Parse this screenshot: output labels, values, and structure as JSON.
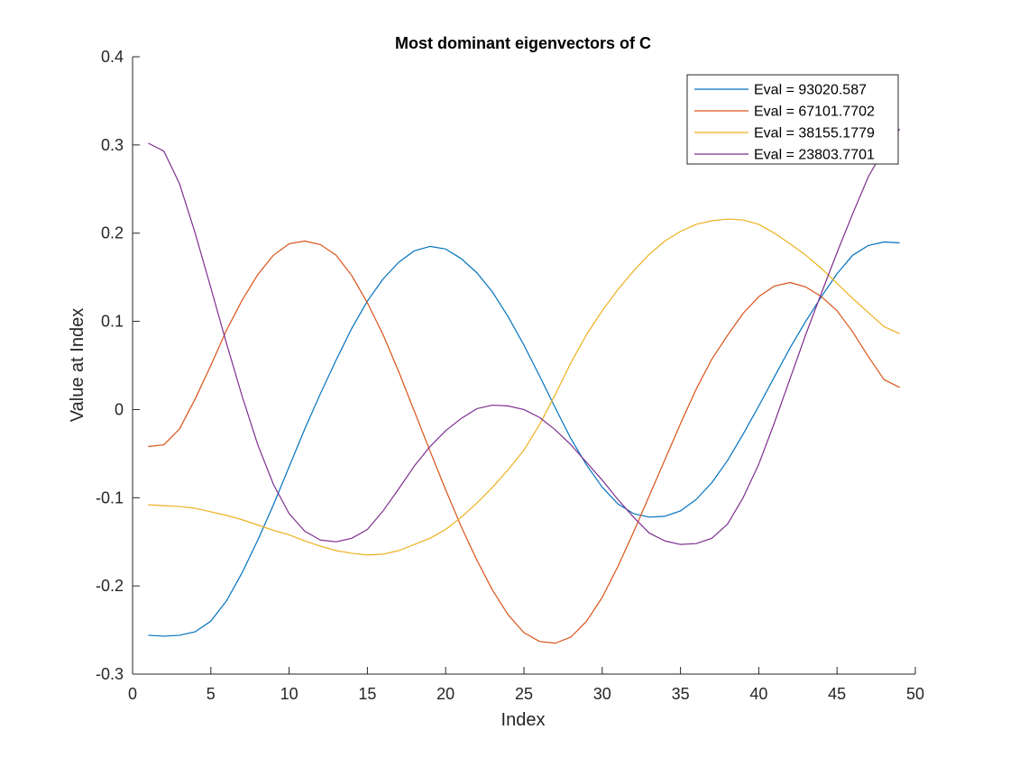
{
  "chart_data": {
    "type": "line",
    "title": "Most dominant eigenvectors of C",
    "xlabel": "Index",
    "ylabel": "Value at Index",
    "xlim": [
      0,
      50
    ],
    "ylim": [
      -0.3,
      0.4
    ],
    "xticks": [
      0,
      5,
      10,
      15,
      20,
      25,
      30,
      35,
      40,
      45,
      50
    ],
    "xtick_labels": [
      "0",
      "5",
      "10",
      "15",
      "20",
      "25",
      "30",
      "35",
      "40",
      "45",
      "50"
    ],
    "yticks": [
      -0.3,
      -0.2,
      -0.1,
      0,
      0.1,
      0.2,
      0.3,
      0.4
    ],
    "ytick_labels": [
      "-0.3",
      "-0.2",
      "-0.1",
      "0",
      "0.1",
      "0.2",
      "0.3",
      "0.4"
    ],
    "grid": false,
    "legend_position": "top-right",
    "x": [
      1,
      2,
      3,
      4,
      5,
      6,
      7,
      8,
      9,
      10,
      11,
      12,
      13,
      14,
      15,
      16,
      17,
      18,
      19,
      20,
      21,
      22,
      23,
      24,
      25,
      26,
      27,
      28,
      29,
      30,
      31,
      32,
      33,
      34,
      35,
      36,
      37,
      38,
      39,
      40,
      41,
      42,
      43,
      44,
      45,
      46,
      47,
      48,
      49
    ],
    "series": [
      {
        "name": "Eval = 93020.587",
        "color": "#0072BD",
        "values": [
          -0.256,
          -0.257,
          -0.256,
          -0.252,
          -0.24,
          -0.217,
          -0.185,
          -0.148,
          -0.108,
          -0.065,
          -0.022,
          0.018,
          0.056,
          0.092,
          0.123,
          0.148,
          0.167,
          0.18,
          0.185,
          0.182,
          0.171,
          0.155,
          0.133,
          0.105,
          0.073,
          0.038,
          0.002,
          -0.033,
          -0.063,
          -0.088,
          -0.107,
          -0.118,
          -0.122,
          -0.121,
          -0.115,
          -0.102,
          -0.083,
          -0.058,
          -0.028,
          0.004,
          0.037,
          0.07,
          0.1,
          0.128,
          0.154,
          0.175,
          0.186,
          0.19,
          0.189
        ]
      },
      {
        "name": "Eval = 67101.7702",
        "color": "#D95319",
        "values": [
          -0.042,
          -0.04,
          -0.022,
          0.012,
          0.05,
          0.09,
          0.124,
          0.153,
          0.175,
          0.188,
          0.191,
          0.187,
          0.175,
          0.152,
          0.121,
          0.085,
          0.043,
          -0.002,
          -0.047,
          -0.091,
          -0.133,
          -0.171,
          -0.205,
          -0.233,
          -0.253,
          -0.263,
          -0.265,
          -0.258,
          -0.24,
          -0.213,
          -0.178,
          -0.139,
          -0.098,
          -0.057,
          -0.016,
          0.023,
          0.057,
          0.084,
          0.109,
          0.128,
          0.14,
          0.144,
          0.139,
          0.128,
          0.112,
          0.088,
          0.06,
          0.034,
          0.025
        ]
      },
      {
        "name": "Eval = 38155.1779",
        "color": "#EDB120",
        "values": [
          -0.108,
          -0.109,
          -0.11,
          -0.112,
          -0.116,
          -0.12,
          -0.125,
          -0.131,
          -0.137,
          -0.142,
          -0.149,
          -0.155,
          -0.16,
          -0.163,
          -0.165,
          -0.164,
          -0.16,
          -0.153,
          -0.146,
          -0.136,
          -0.122,
          -0.106,
          -0.088,
          -0.068,
          -0.046,
          -0.017,
          0.017,
          0.053,
          0.085,
          0.112,
          0.136,
          0.157,
          0.176,
          0.191,
          0.202,
          0.21,
          0.214,
          0.216,
          0.215,
          0.21,
          0.2,
          0.188,
          0.175,
          0.16,
          0.143,
          0.126,
          0.11,
          0.094,
          0.086
        ]
      },
      {
        "name": "Eval = 23803.7701",
        "color": "#7E2F8E",
        "values": [
          0.302,
          0.293,
          0.256,
          0.2,
          0.138,
          0.075,
          0.015,
          -0.04,
          -0.085,
          -0.118,
          -0.138,
          -0.148,
          -0.15,
          -0.146,
          -0.136,
          -0.115,
          -0.09,
          -0.064,
          -0.042,
          -0.024,
          -0.01,
          0.001,
          0.005,
          0.004,
          0.0,
          -0.009,
          -0.023,
          -0.04,
          -0.06,
          -0.08,
          -0.102,
          -0.122,
          -0.14,
          -0.149,
          -0.153,
          -0.152,
          -0.146,
          -0.13,
          -0.1,
          -0.062,
          -0.015,
          0.035,
          0.085,
          0.132,
          0.178,
          0.222,
          0.264,
          0.295,
          0.318
        ]
      }
    ]
  }
}
